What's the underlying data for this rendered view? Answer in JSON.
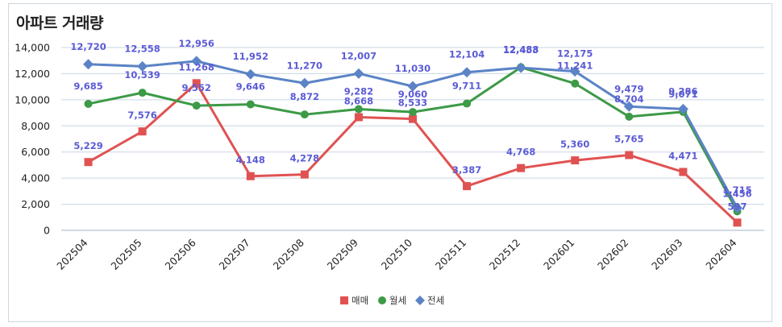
{
  "chart_data": {
    "type": "line",
    "title": "아파트 거래량",
    "categories": [
      "202504",
      "202505",
      "202506",
      "202507",
      "202508",
      "202509",
      "202510",
      "202511",
      "202512",
      "202601",
      "202602",
      "202603",
      "202604"
    ],
    "series": [
      {
        "name": "매매",
        "color": "#e05252",
        "marker": "square",
        "values": [
          5229,
          7576,
          11268,
          4148,
          4278,
          8668,
          8533,
          3387,
          4768,
          5360,
          5765,
          4471,
          597
        ],
        "labels": [
          "5,229",
          "7,576",
          "11,268",
          "4,148",
          "4,278",
          "8,668",
          "8,533",
          "3,387",
          "4,768",
          "5,360",
          "5,765",
          "4,471",
          "597"
        ]
      },
      {
        "name": "월세",
        "color": "#3d9a47",
        "marker": "circle",
        "values": [
          9685,
          10539,
          9552,
          9646,
          8872,
          9282,
          9060,
          9711,
          12488,
          11241,
          8704,
          9071,
          1456
        ],
        "labels": [
          "9,685",
          "10,539",
          "9,552",
          "9,646",
          "8,872",
          "9,282",
          "9,060",
          "9,711",
          "12,488",
          "11,241",
          "8,704",
          "9,071",
          "1,456"
        ]
      },
      {
        "name": "전세",
        "color": "#5b83c6",
        "marker": "diamond",
        "values": [
          12720,
          12558,
          12956,
          11952,
          11270,
          12007,
          11030,
          12104,
          12453,
          12175,
          9479,
          9286,
          1715
        ],
        "labels": [
          "12,720",
          "12,558",
          "12,956",
          "11,952",
          "11,270",
          "12,007",
          "11,030",
          "12,104",
          "12,453",
          "12,175",
          "9,479",
          "9,286",
          "1,715"
        ]
      }
    ],
    "y_ticks": [
      "0",
      "2,000",
      "4,000",
      "6,000",
      "8,000",
      "10,000",
      "12,000",
      "14,000"
    ],
    "ylim": [
      0,
      14000
    ],
    "grid": true,
    "legend": "bottom-center"
  }
}
